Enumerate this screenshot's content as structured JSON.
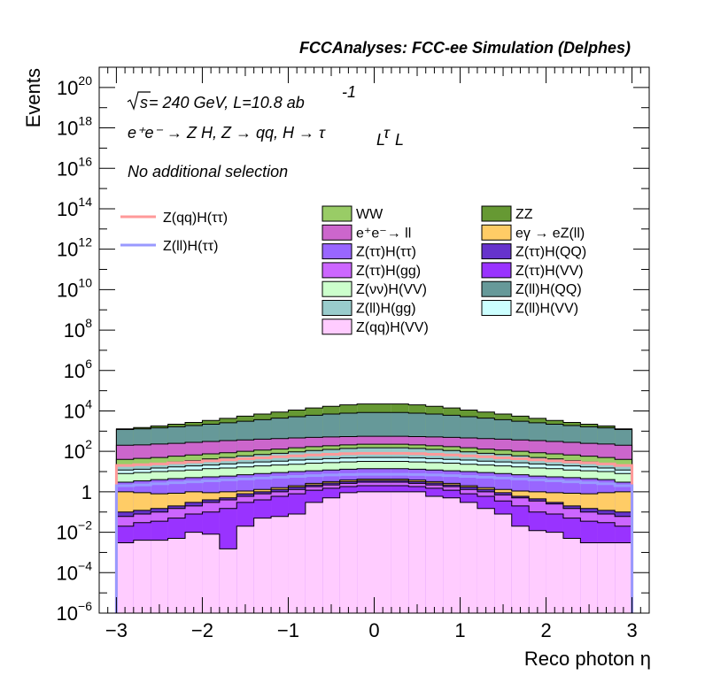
{
  "chart_data": {
    "type": "stacked-histogram",
    "title": "FCCAnalyses: FCC-ee Simulation (Delphes)",
    "xlabel": "Reco photon η",
    "ylabel": "Events",
    "xlim": [
      -3.2,
      3.2
    ],
    "ylim": [
      1e-06,
      1e+21
    ],
    "yscale": "log",
    "x_ticks": [
      "−3",
      "−2",
      "−1",
      "0",
      "1",
      "2",
      "3"
    ],
    "y_ticks": [
      {
        "base": "10",
        "exp": "−6"
      },
      {
        "base": "10",
        "exp": "−4"
      },
      {
        "base": "10",
        "exp": "−2"
      },
      {
        "base": "1",
        "exp": ""
      },
      {
        "base": "10",
        "exp": "2"
      },
      {
        "base": "10",
        "exp": "4"
      },
      {
        "base": "10",
        "exp": "6"
      },
      {
        "base": "10",
        "exp": "8"
      },
      {
        "base": "10",
        "exp": "10"
      },
      {
        "base": "10",
        "exp": "12"
      },
      {
        "base": "10",
        "exp": "14"
      },
      {
        "base": "10",
        "exp": "16"
      },
      {
        "base": "10",
        "exp": "18"
      },
      {
        "base": "10",
        "exp": "20"
      }
    ],
    "annotations": {
      "energy_prefix": "s",
      "energy_rest": " = 240 GeV, L=10.8 ab",
      "lumi_exp": "-1",
      "process": "e⁺e⁻ → Z H, Z  → qq, H  →  τ",
      "process_sub": "L",
      "selection": "No additional selection"
    },
    "x_edges": [
      -3.0,
      -2.8,
      -2.6,
      -2.4,
      -2.2,
      -2.0,
      -1.8,
      -1.6,
      -1.4,
      -1.2,
      -1.0,
      -0.8,
      -0.6,
      -0.4,
      -0.2,
      0.0,
      0.2,
      0.4,
      0.6,
      0.8,
      1.0,
      1.2,
      1.4,
      1.6,
      1.8,
      2.0,
      2.2,
      2.4,
      2.6,
      2.8,
      3.0
    ],
    "stack_order": "bottom-to-top",
    "stack_totals": [
      {
        "name": "Z(qq)H(VV)",
        "values": [
          0.003,
          0.004,
          0.004,
          0.005,
          0.01,
          0.008,
          0.0015,
          0.02,
          0.05,
          0.06,
          0.08,
          0.3,
          0.5,
          0.9,
          1.0,
          1.0,
          1.0,
          1.0,
          0.6,
          0.5,
          0.3,
          0.15,
          0.08,
          0.02,
          0.012,
          0.01,
          0.005,
          0.003,
          0.003,
          0.003
        ]
      },
      {
        "name": "Z(ττ)H(VV)",
        "values": [
          0.02,
          0.03,
          0.035,
          0.05,
          0.08,
          0.1,
          0.15,
          0.3,
          0.4,
          0.6,
          0.8,
          1.2,
          1.5,
          1.8,
          2.0,
          2.0,
          2.0,
          1.8,
          1.5,
          1.2,
          0.8,
          0.6,
          0.35,
          0.2,
          0.1,
          0.08,
          0.05,
          0.035,
          0.03,
          0.02
        ]
      },
      {
        "name": "Z(ττ)H(gg)",
        "values": [
          0.06,
          0.08,
          0.1,
          0.15,
          0.2,
          0.3,
          0.4,
          0.6,
          0.8,
          1.0,
          1.3,
          1.8,
          2.2,
          2.6,
          3.0,
          3.0,
          3.0,
          2.6,
          2.2,
          1.8,
          1.3,
          1.0,
          0.7,
          0.5,
          0.35,
          0.25,
          0.15,
          0.1,
          0.08,
          0.06
        ]
      },
      {
        "name": "Z(ττ)H(QQ)",
        "values": [
          0.1,
          0.12,
          0.15,
          0.2,
          0.3,
          0.4,
          0.5,
          0.8,
          1.0,
          1.3,
          1.7,
          2.2,
          2.7,
          3.2,
          3.6,
          3.6,
          3.6,
          3.2,
          2.7,
          2.2,
          1.7,
          1.3,
          0.9,
          0.6,
          0.45,
          0.3,
          0.2,
          0.15,
          0.12,
          0.1
        ]
      },
      {
        "name": "eγ → eZ(ll)",
        "values": [
          1.0,
          0.9,
          0.8,
          0.85,
          1.0,
          0.9,
          1.0,
          1.1,
          1.3,
          1.6,
          2.0,
          2.6,
          3.2,
          3.8,
          4.2,
          4.2,
          4.2,
          3.8,
          3.2,
          2.6,
          2.0,
          1.6,
          1.3,
          1.1,
          1.0,
          0.9,
          0.85,
          0.8,
          0.9,
          1.0
        ]
      },
      {
        "name": "Z(ττ)H(ττ)",
        "values": [
          3,
          3.5,
          4,
          4.5,
          5,
          5.5,
          6,
          7,
          8,
          9,
          10,
          11,
          12,
          13,
          14,
          14,
          14,
          13,
          12,
          11,
          10,
          9,
          8,
          7,
          6,
          5.5,
          5,
          4.5,
          4,
          3
        ]
      },
      {
        "name": "Z(νν)H(VV)",
        "values": [
          8,
          9,
          10,
          11,
          12,
          14,
          15,
          17,
          19,
          21,
          23,
          26,
          28,
          30,
          32,
          32,
          32,
          30,
          28,
          26,
          23,
          21,
          19,
          17,
          15,
          14,
          12,
          11,
          10,
          8
        ]
      },
      {
        "name": "Z(ll)H(VV)",
        "values": [
          12,
          13,
          15,
          17,
          19,
          21,
          24,
          27,
          30,
          33,
          37,
          40,
          44,
          47,
          50,
          50,
          50,
          47,
          44,
          40,
          37,
          33,
          30,
          27,
          24,
          21,
          19,
          17,
          15,
          12
        ]
      },
      {
        "name": "Z(ll)H(gg)",
        "values": [
          20,
          22,
          25,
          30,
          35,
          42,
          50,
          60,
          70,
          80,
          95,
          110,
          125,
          140,
          150,
          150,
          150,
          140,
          125,
          110,
          95,
          80,
          70,
          60,
          50,
          42,
          35,
          30,
          25,
          20
        ]
      },
      {
        "name": "WW",
        "values": [
          40,
          45,
          50,
          58,
          66,
          75,
          85,
          100,
          115,
          130,
          150,
          170,
          190,
          210,
          225,
          225,
          225,
          210,
          190,
          170,
          150,
          130,
          115,
          100,
          85,
          75,
          66,
          58,
          50,
          40
        ]
      },
      {
        "name": "e⁺e⁻→ ll",
        "values": [
          200,
          210,
          230,
          250,
          280,
          310,
          340,
          370,
          400,
          430,
          460,
          490,
          520,
          540,
          560,
          560,
          560,
          540,
          520,
          490,
          460,
          430,
          400,
          370,
          340,
          310,
          280,
          250,
          230,
          200
        ]
      },
      {
        "name": "Z(ll)H(QQ)",
        "values": [
          1200,
          1300,
          1450,
          1650,
          1900,
          2200,
          2600,
          3100,
          3700,
          4400,
          5200,
          6100,
          7000,
          7800,
          8400,
          8400,
          8400,
          7800,
          7000,
          6100,
          5200,
          4400,
          3700,
          3100,
          2600,
          2200,
          1900,
          1650,
          1450,
          1200
        ]
      },
      {
        "name": "ZZ",
        "values": [
          1300,
          1500,
          1800,
          2200,
          2700,
          3400,
          4300,
          5500,
          7000,
          8800,
          11000,
          14000,
          17000,
          20000,
          22000,
          22000,
          22000,
          20000,
          17000,
          14000,
          11000,
          8800,
          7000,
          5500,
          4300,
          3400,
          2700,
          2200,
          1800,
          1300
        ]
      }
    ],
    "signal_lines": [
      {
        "name": "Z(qq)H(ττ)",
        "color": "#ff9999",
        "values": [
          20,
          22,
          24,
          27,
          30,
          34,
          38,
          43,
          48,
          54,
          60,
          66,
          72,
          77,
          80,
          80,
          80,
          77,
          72,
          66,
          60,
          54,
          48,
          43,
          38,
          34,
          30,
          27,
          24,
          20
        ]
      },
      {
        "name": "Z(ll)H(ττ)",
        "color": "#9999ff",
        "values": [
          2,
          2.2,
          2.5,
          2.8,
          3.1,
          3.5,
          3.9,
          4.3,
          4.8,
          5.3,
          5.8,
          6.3,
          6.8,
          7.1,
          7.3,
          7.3,
          7.3,
          7.1,
          6.8,
          6.3,
          5.8,
          5.3,
          4.8,
          4.3,
          3.9,
          3.5,
          3.1,
          2.8,
          2.5,
          2.0
        ]
      }
    ],
    "colors": {
      "WW": "#99cc66",
      "ZZ": "#669933",
      "e⁺e⁻→ ll": "#cc66cc",
      "eγ → eZ(ll)": "#ffcc66",
      "Z(ττ)H(ττ)": "#9966ff",
      "Z(ττ)H(QQ)": "#6633cc",
      "Z(ττ)H(gg)": "#cc66ff",
      "Z(ττ)H(VV)": "#9933ff",
      "Z(νν)H(VV)": "#ccffcc",
      "Z(ll)H(QQ)": "#669999",
      "Z(ll)H(gg)": "#99cccc",
      "Z(ll)H(VV)": "#ccffff",
      "Z(qq)H(VV)": "#ffccff"
    },
    "legend_main": [
      {
        "label": "WW",
        "color": "#99cc66"
      },
      {
        "label": "ZZ",
        "color": "#669933"
      },
      {
        "label": "e⁺e⁻→ ll",
        "color": "#cc66cc"
      },
      {
        "label": "eγ → eZ(ll)",
        "color": "#ffcc66"
      },
      {
        "label": "Z(ττ)H(ττ)",
        "color": "#9966ff"
      },
      {
        "label": "Z(ττ)H(QQ)",
        "color": "#6633cc"
      },
      {
        "label": "Z(ττ)H(gg)",
        "color": "#cc66ff"
      },
      {
        "label": "Z(ττ)H(VV)",
        "color": "#9933ff"
      },
      {
        "label": "Z(νν)H(VV)",
        "color": "#ccffcc"
      },
      {
        "label": "Z(ll)H(QQ)",
        "color": "#669999"
      },
      {
        "label": "Z(ll)H(gg)",
        "color": "#99cccc"
      },
      {
        "label": "Z(ll)H(VV)",
        "color": "#ccffff"
      },
      {
        "label": "Z(qq)H(VV)",
        "color": "#ffccff"
      }
    ],
    "legend_signal": [
      {
        "label": "Z(qq)H(ττ)",
        "color": "#ff9999"
      },
      {
        "label": "Z(ll)H(ττ)",
        "color": "#9999ff"
      }
    ],
    "legend_placement": "top-center",
    "grid": false
  }
}
